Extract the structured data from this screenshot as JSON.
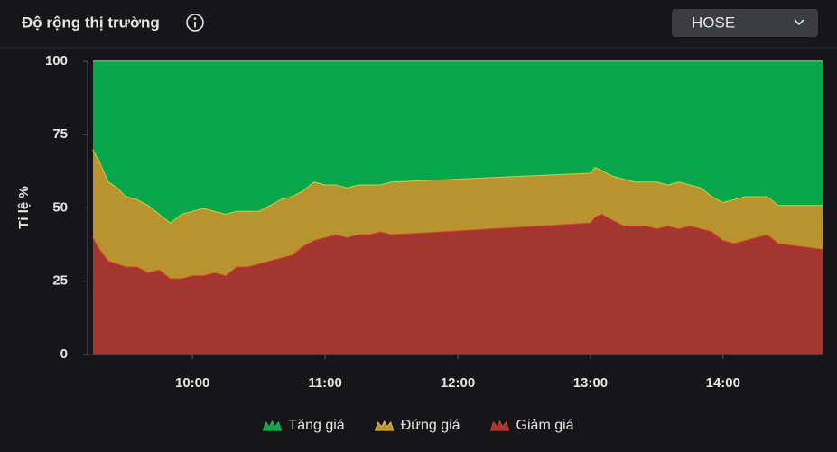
{
  "header": {
    "title": "Độ rộng thị trường",
    "dropdown": "HOSE"
  },
  "chart_data": {
    "type": "stacked-area",
    "ylabel": "Tỉ lệ %",
    "ylim": [
      0,
      100
    ],
    "yticks": [
      0,
      25,
      50,
      75,
      100
    ],
    "xlim": [
      555,
      885
    ],
    "xticks": [
      {
        "value": 600,
        "label": "10:00"
      },
      {
        "value": 660,
        "label": "11:00"
      },
      {
        "value": 720,
        "label": "12:00"
      },
      {
        "value": 780,
        "label": "13:00"
      },
      {
        "value": 840,
        "label": "14:00"
      }
    ],
    "grid": false,
    "legend": "bottom",
    "x": [
      555,
      558,
      562,
      566,
      570,
      575,
      580,
      585,
      590,
      595,
      600,
      605,
      610,
      615,
      620,
      625,
      630,
      635,
      640,
      645,
      650,
      655,
      660,
      665,
      670,
      675,
      680,
      685,
      690,
      780,
      782,
      785,
      790,
      795,
      800,
      805,
      810,
      815,
      820,
      825,
      830,
      835,
      840,
      845,
      850,
      855,
      860,
      865,
      885
    ],
    "series": [
      {
        "name": "Tăng giá",
        "color": "#08a64b",
        "line": "#17c45c",
        "values": [
          30,
          34,
          41,
          43,
          46,
          47,
          49,
          52,
          55,
          52,
          51,
          50,
          51,
          52,
          51,
          51,
          51,
          49,
          47,
          46,
          44,
          41,
          42,
          42,
          43,
          42,
          42,
          42,
          41,
          38,
          36,
          37,
          39,
          40,
          41,
          41,
          41,
          42,
          41,
          42,
          43,
          46,
          48,
          47,
          46,
          46,
          46,
          49,
          49
        ]
      },
      {
        "name": "Đứng giá",
        "color": "#b8932f",
        "line": "#e6c531",
        "values": [
          30,
          30,
          27,
          26,
          24,
          23,
          23,
          19,
          19,
          22,
          22,
          23,
          21,
          21,
          19,
          19,
          18,
          19,
          20,
          20,
          19,
          20,
          18,
          17,
          17,
          17,
          17,
          16,
          18,
          17,
          17,
          15,
          15,
          16,
          15,
          15,
          16,
          14,
          16,
          14,
          14,
          12,
          13,
          15,
          15,
          14,
          13,
          13,
          15
        ]
      },
      {
        "name": "Giảm giá",
        "color": "#a33630",
        "line": "#e0392f",
        "values": [
          40,
          36,
          32,
          31,
          30,
          30,
          28,
          29,
          26,
          26,
          27,
          27,
          28,
          27,
          30,
          30,
          31,
          32,
          33,
          34,
          37,
          39,
          40,
          41,
          40,
          41,
          41,
          42,
          41,
          45,
          47,
          48,
          46,
          44,
          44,
          44,
          43,
          44,
          43,
          44,
          43,
          42,
          39,
          38,
          39,
          40,
          41,
          38,
          36
        ]
      }
    ]
  }
}
